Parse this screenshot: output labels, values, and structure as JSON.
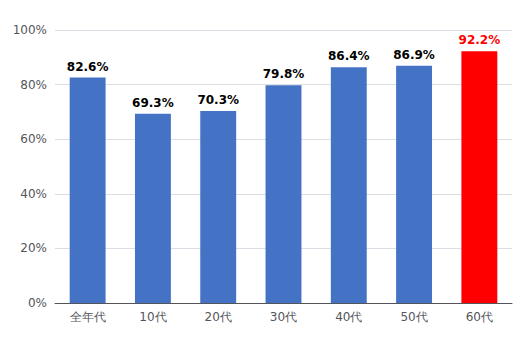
{
  "chart_data": {
    "type": "bar",
    "categories": [
      "全年代",
      "10代",
      "20代",
      "30代",
      "40代",
      "50代",
      "60代"
    ],
    "values": [
      82.6,
      69.3,
      70.3,
      79.8,
      86.4,
      86.9,
      92.2
    ],
    "value_labels": [
      "82.6%",
      "69.3%",
      "70.3%",
      "79.8%",
      "86.4%",
      "86.9%",
      "92.2%"
    ],
    "data_labels": true,
    "colors": [
      "#4472C4",
      "#4472C4",
      "#4472C4",
      "#4472C4",
      "#4472C4",
      "#4472C4",
      "#FF0000"
    ],
    "ylim": [
      0,
      100
    ],
    "yticks": [
      {
        "value": 0,
        "label": "0%"
      },
      {
        "value": 20,
        "label": "20%"
      },
      {
        "value": 40,
        "label": "40%"
      },
      {
        "value": 60,
        "label": "60%"
      },
      {
        "value": 80,
        "label": "80%"
      },
      {
        "value": 100,
        "label": "100%"
      }
    ],
    "grid": true
  }
}
